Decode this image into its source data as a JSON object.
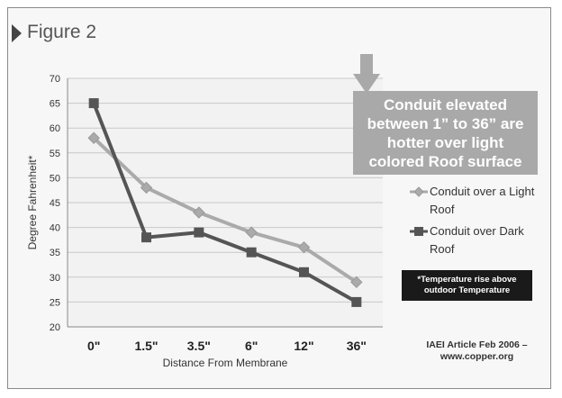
{
  "figure_label": "Figure 2",
  "callout": "Conduit elevated\nbetween 1” to 36” are\nhotter over light\ncolored Roof surface",
  "note": "*Temperature rise above\noutdoor Temperature",
  "source": "IAEI Article  Feb 2006 –\nwww.copper.org",
  "colors": {
    "light_roof": "#aaaaaa",
    "dark_roof": "#555555",
    "callout_bg": "#a9a9a9",
    "note_bg": "#1a1a1a"
  },
  "chart_data": {
    "type": "line",
    "categories": [
      "0\"",
      "1.5\"",
      "3.5\"",
      "6\"",
      "12\"",
      "36\""
    ],
    "series": [
      {
        "name": "Conduit over a Light Roof",
        "values": [
          58,
          48,
          43,
          39,
          36,
          29
        ],
        "marker": "diamond"
      },
      {
        "name": "Conduit over Dark Roof",
        "values": [
          65,
          38,
          39,
          35,
          31,
          25
        ],
        "marker": "square"
      }
    ],
    "yticks": [
      20,
      25,
      30,
      35,
      40,
      45,
      50,
      55,
      60,
      65,
      70
    ],
    "ylim": [
      20,
      70
    ],
    "xlabel": "Distance From Membrane",
    "ylabel": "Degree Fahrenheit*",
    "grid": true,
    "legend": "right"
  }
}
